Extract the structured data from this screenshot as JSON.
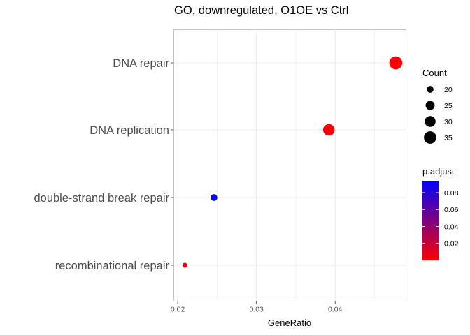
{
  "chart_data": {
    "type": "scatter",
    "title": "GO, downregulated, O1OE vs Ctrl",
    "xlabel": "GeneRatio",
    "ylabel": "",
    "xlim": [
      0.0195,
      0.049
    ],
    "x_ticks": [
      0.02,
      0.03,
      0.04
    ],
    "x_tick_labels": [
      "0.02",
      "0.03",
      "0.04"
    ],
    "grid": true,
    "categories": [
      "DNA repair",
      "DNA replication",
      "double-strand break repair",
      "recombinational repair"
    ],
    "points": [
      {
        "term": "DNA repair",
        "gene_ratio": 0.0477,
        "count": 37,
        "p_adjust": 0.001
      },
      {
        "term": "DNA replication",
        "gene_ratio": 0.0392,
        "count": 32,
        "p_adjust": 0.003
      },
      {
        "term": "double-strand break repair",
        "gene_ratio": 0.0246,
        "count": 20,
        "p_adjust": 0.093
      },
      {
        "term": "recombinational repair",
        "gene_ratio": 0.0209,
        "count": 17,
        "p_adjust": 0.004
      }
    ],
    "legend_size": {
      "title": "Count",
      "values": [
        20,
        25,
        30,
        35
      ],
      "labels": [
        "20",
        "25",
        "30",
        "35"
      ]
    },
    "legend_color": {
      "title": "p.adjust",
      "range": [
        0.0,
        0.094
      ],
      "ticks": [
        0.02,
        0.04,
        0.06,
        0.08
      ],
      "tick_labels": [
        "0.02",
        "0.04",
        "0.06",
        "0.08"
      ],
      "low_color": "#ff0000",
      "high_color": "#0000ff"
    },
    "legend_position": "right"
  }
}
